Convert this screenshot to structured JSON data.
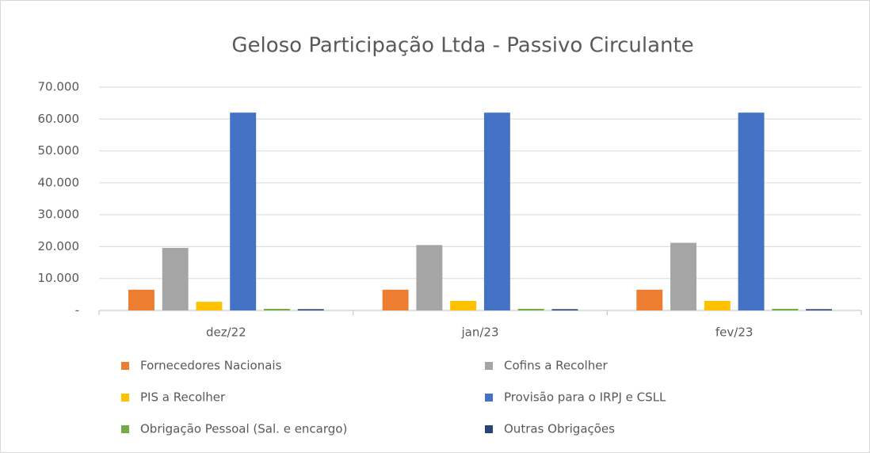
{
  "chart_data": {
    "type": "bar",
    "title": "Geloso Participação Ltda - Passivo Circulante",
    "categories": [
      "dez/22",
      "jan/23",
      "fev/23"
    ],
    "series": [
      {
        "name": "Fornecedores Nacionais",
        "color": "#ed7d31",
        "values": [
          6500,
          6500,
          6500
        ]
      },
      {
        "name": "Cofins a Recolher",
        "color": "#a5a5a5",
        "values": [
          19600,
          20500,
          21200
        ]
      },
      {
        "name": "PIS a Recolher",
        "color": "#ffc000",
        "values": [
          2700,
          3000,
          3000
        ]
      },
      {
        "name": "Provisão para o IRPJ e CSLL",
        "color": "#4472c4",
        "values": [
          62000,
          62000,
          62000
        ]
      },
      {
        "name": "Obrigação Pessoal (Sal. e encargo)",
        "color": "#70ad47",
        "values": [
          500,
          500,
          500
        ]
      },
      {
        "name": "Outras Obrigações",
        "color": "#264478",
        "values": [
          400,
          400,
          400
        ]
      }
    ],
    "ylim": [
      0,
      70000
    ],
    "yticks": [
      {
        "value": 0,
        "label": "-"
      },
      {
        "value": 10000,
        "label": "10.000"
      },
      {
        "value": 20000,
        "label": "20.000"
      },
      {
        "value": 30000,
        "label": "30.000"
      },
      {
        "value": 40000,
        "label": "40.000"
      },
      {
        "value": 50000,
        "label": "50.000"
      },
      {
        "value": 60000,
        "label": "60.000"
      },
      {
        "value": 70000,
        "label": "70.000"
      }
    ],
    "grid": true,
    "legend": "bottom"
  }
}
